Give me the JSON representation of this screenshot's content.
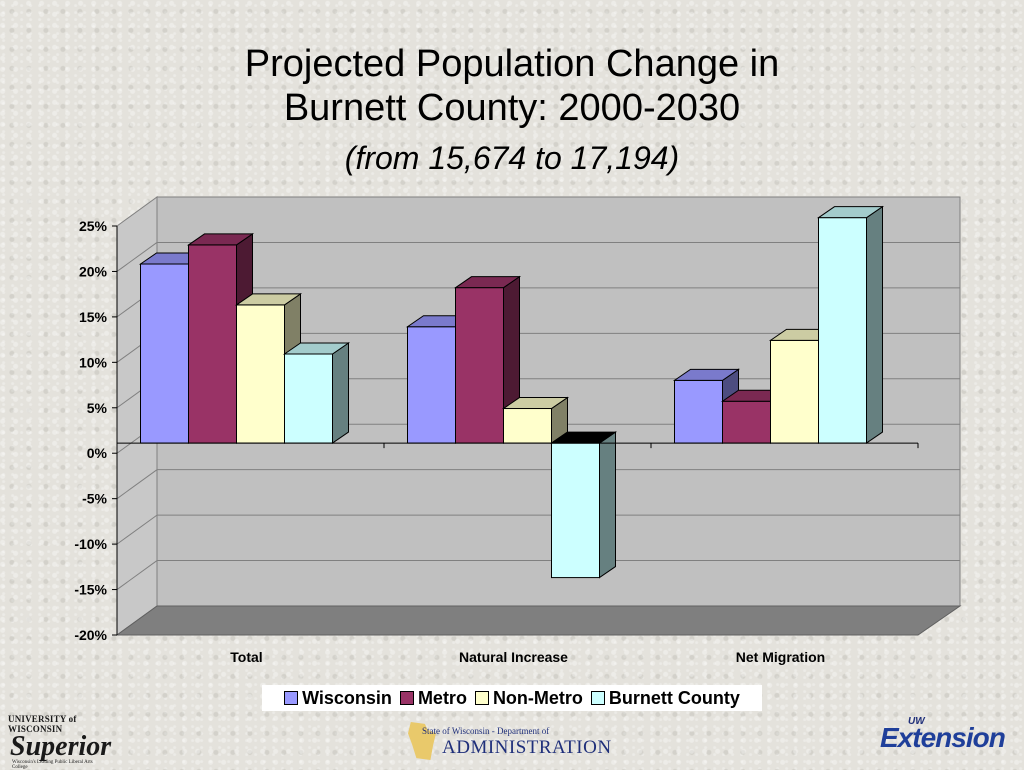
{
  "header": {
    "title_line1": "Projected Population Change in",
    "title_line2": "Burnett County: 2000-2030",
    "subtitle": "(from 15,674 to 17,194)"
  },
  "chart_data": {
    "type": "bar",
    "categories": [
      "Total",
      "Natural Increase",
      "Net Migration"
    ],
    "series": [
      {
        "name": "Wisconsin",
        "values": [
          19.7,
          12.8,
          6.9
        ],
        "color": "#9999ff"
      },
      {
        "name": "Metro",
        "values": [
          21.8,
          17.1,
          4.6
        ],
        "color": "#993366"
      },
      {
        "name": "Non-Metro",
        "values": [
          15.2,
          3.8,
          11.3
        ],
        "color": "#ffffcc"
      },
      {
        "name": "Burnett County",
        "values": [
          9.8,
          -14.8,
          24.8
        ],
        "color": "#ccffff"
      }
    ],
    "y_ticks": [
      "25%",
      "20%",
      "15%",
      "10%",
      "5%",
      "0%",
      "-5%",
      "-10%",
      "-15%",
      "-20%"
    ],
    "ylim": [
      -20,
      25
    ],
    "grid": true,
    "legend_position": "bottom"
  },
  "logos": {
    "left_top": "UNIVERSITY of WISCONSIN",
    "left_script": "Superior",
    "left_tag": "Wisconsin's Leading Public Liberal Arts College",
    "mid_small": "State of Wisconsin - Department of",
    "mid_big": "ADMINISTRATION",
    "right_small": "UW",
    "right_big": "Extension"
  }
}
